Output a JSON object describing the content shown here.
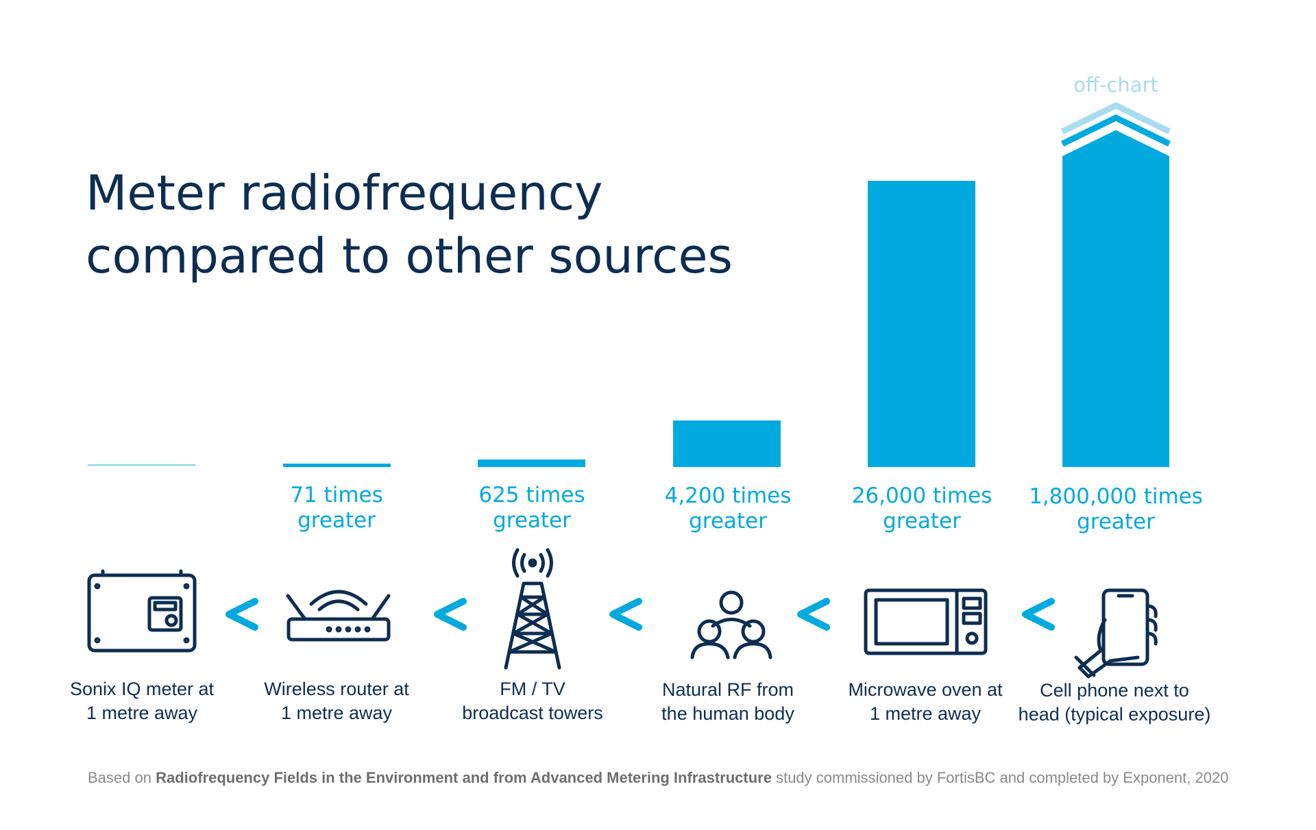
{
  "title": [
    "Meter radiofrequency",
    "compared to other sources"
  ],
  "off_chart": "off-chart",
  "items": [
    {
      "label": [
        "Sonix IQ meter at",
        "1 metre away"
      ]
    },
    {
      "comparison": [
        "71 times",
        "greater"
      ],
      "label": [
        "Wireless router at",
        "1 metre away"
      ]
    },
    {
      "comparison": [
        "625 times",
        "greater"
      ],
      "label": [
        "FM / TV",
        "broadcast towers"
      ]
    },
    {
      "comparison": [
        "4,200 times",
        "greater"
      ],
      "label": [
        "Natural RF from",
        "the human body"
      ]
    },
    {
      "comparison": [
        "26,000 times",
        "greater"
      ],
      "label": [
        "Microwave oven at",
        "1 metre away"
      ]
    },
    {
      "comparison": [
        "1,800,000 times",
        "greater"
      ],
      "label": [
        "Cell phone next to",
        "head (typical exposure)"
      ]
    }
  ],
  "footnote": {
    "prefix": "Based on ",
    "bold": "Radiofrequency Fields in the Environment and from Advanced Metering Infrastructure",
    "suffix": " study commissioned by FortisBC and completed by Exponent, 2020"
  }
}
